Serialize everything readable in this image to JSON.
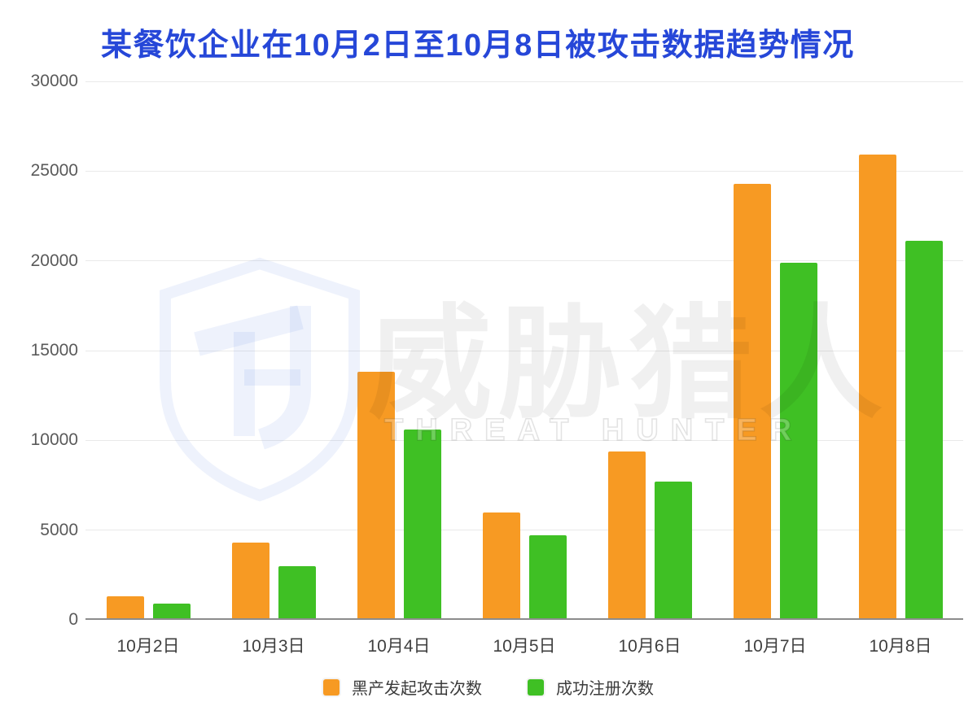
{
  "title": {
    "text": "某餐饮企业在10月2日至10月8日被攻击数据趋势情况",
    "color": "#2647d8"
  },
  "watermark": {
    "logo": "threat-hunter-shield",
    "cn": "威胁猎人",
    "en": "THREAT HUNTER"
  },
  "colors": {
    "attack_series": "#f79a23",
    "register_series": "#3fc024",
    "gridline": "#e9e9e9",
    "axis_line": "#8c8c8c",
    "title_blue": "#2647d8"
  },
  "chart_data": {
    "type": "bar",
    "title": "某餐饮企业在10月2日至10月8日被攻击数据趋势情况",
    "categories": [
      "10月2日",
      "10月3日",
      "10月4日",
      "10月5日",
      "10月6日",
      "10月7日",
      "10月8日"
    ],
    "series": [
      {
        "name": "黑产发起攻击次数",
        "color": "#f79a23",
        "values": [
          1300,
          4300,
          13800,
          6000,
          9400,
          24300,
          25900
        ]
      },
      {
        "name": "成功注册次数",
        "color": "#3fc024",
        "values": [
          900,
          3000,
          10600,
          4700,
          7700,
          19900,
          21100
        ]
      }
    ],
    "xlabel": "",
    "ylabel": "",
    "ylim": [
      0,
      30000
    ],
    "yticks": [
      0,
      5000,
      10000,
      15000,
      20000,
      25000,
      30000
    ],
    "grid": true,
    "legend_position": "bottom"
  }
}
